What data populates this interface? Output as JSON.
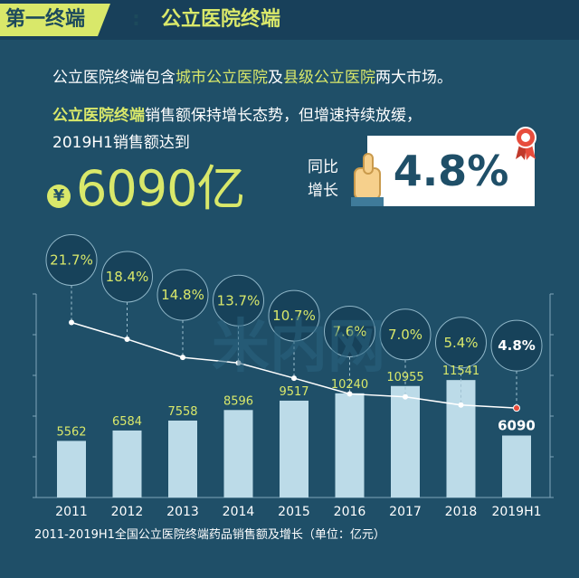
{
  "header": {
    "tag_label": "第一终端",
    "tag_colon": ":",
    "section_title": "公立医院终端"
  },
  "intro": {
    "prefix": "公立医院终端包含",
    "highlight1": "城市公立医院",
    "mid": "及",
    "highlight2": "县级公立医院",
    "suffix": "两大市场。"
  },
  "summary": {
    "bold_lead": "公立医院终端",
    "line2_rest": "销售额保持增长态势，但增速持续放缓，",
    "line3": "2019H1销售额达到",
    "currency": "¥",
    "amount": "6090亿",
    "yoy_label_1": "同比",
    "yoy_label_2": "增长",
    "yoy_value": "4.8%"
  },
  "watermark": "米内网",
  "caption": "2011-2019H1全国公立医院终端药品销售额及增长（单位：亿元）",
  "colors": {
    "background": "#1f4f68",
    "accent": "#d9e86a",
    "bar": "#bcdbe8",
    "line": "#ffffff"
  },
  "chart_data": {
    "type": "bar",
    "categories": [
      "2011",
      "2012",
      "2013",
      "2014",
      "2015",
      "2016",
      "2017",
      "2018",
      "2019H1"
    ],
    "series": [
      {
        "name": "销售额",
        "type": "bar",
        "values": [
          5562,
          6584,
          7558,
          8596,
          9517,
          10240,
          10955,
          11541,
          6090
        ]
      },
      {
        "name": "增长",
        "type": "line",
        "values": [
          21.7,
          18.4,
          14.8,
          13.7,
          10.7,
          7.6,
          7.0,
          5.4,
          4.8
        ]
      }
    ],
    "value_labels": [
      "5562",
      "6584",
      "7558",
      "8596",
      "9517",
      "10240",
      "10955",
      "11541",
      "6090"
    ],
    "growth_labels": [
      "21.7%",
      "18.4%",
      "14.8%",
      "13.7%",
      "10.7%",
      "7.6%",
      "7.0%",
      "5.4%",
      "4.8%"
    ],
    "ylim": [
      0,
      20000
    ],
    "growth_ylim": [
      0,
      30
    ],
    "grid": false
  }
}
